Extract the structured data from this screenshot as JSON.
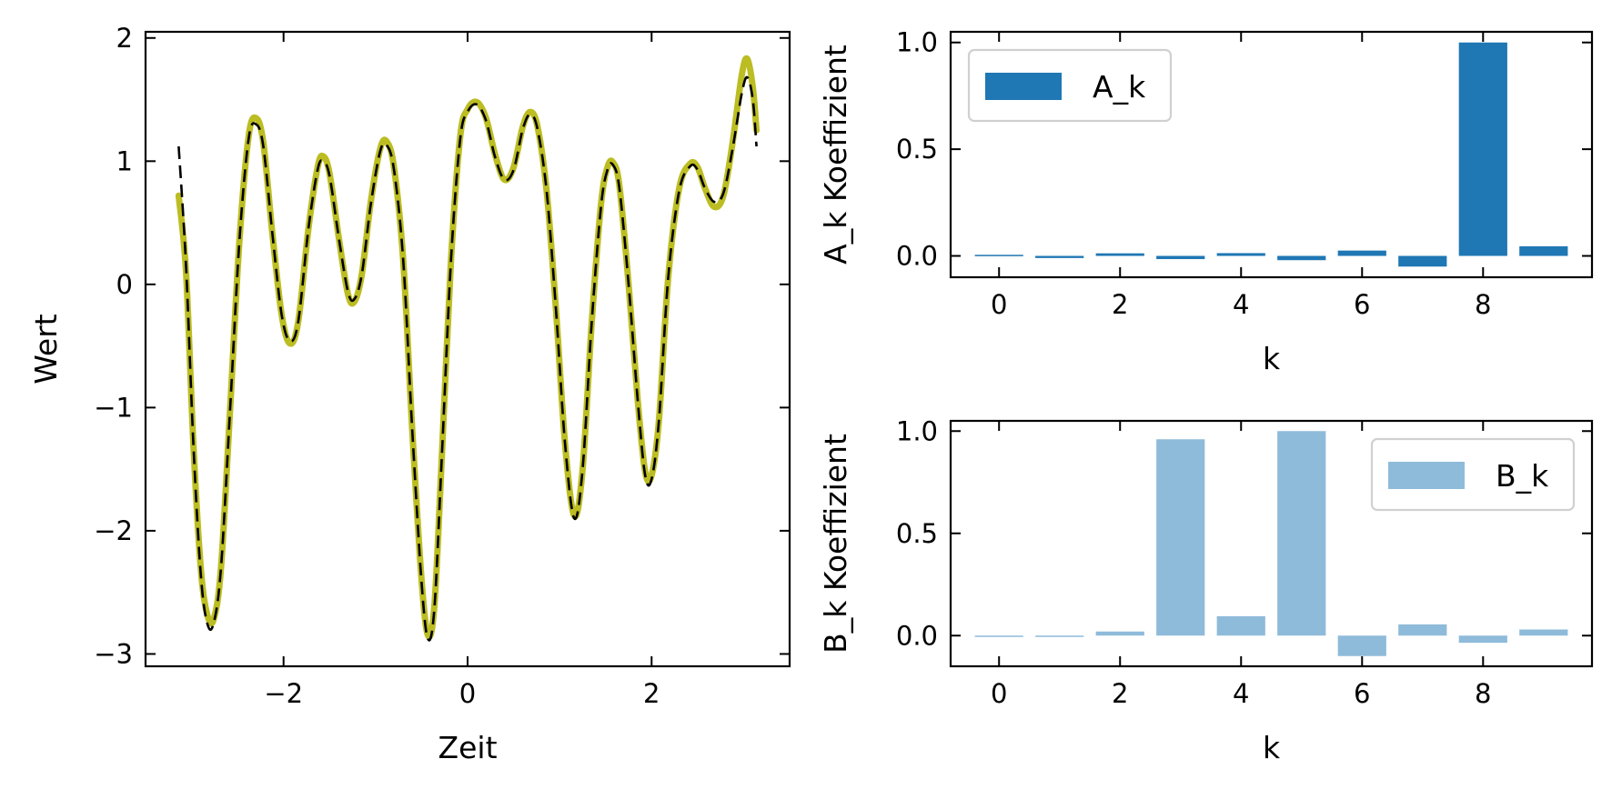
{
  "chart_data": [
    {
      "type": "line",
      "title": "",
      "xlabel": "Zeit",
      "ylabel": "Wert",
      "xlim": [
        -3.5,
        3.5
      ],
      "ylim": [
        -3.1,
        2.05
      ],
      "xticks": [
        -2,
        0,
        2
      ],
      "yticks": [
        -3,
        -2,
        -1,
        0,
        1,
        2
      ],
      "xtick_labels": [
        "−2",
        "0",
        "2"
      ],
      "ytick_labels": [
        "−3",
        "−2",
        "−1",
        "0",
        "1",
        "2"
      ],
      "grid": false,
      "series": [
        {
          "style": "solid",
          "color": "#bcbd22",
          "points": [
            [
              -3.14,
              0.72
            ],
            [
              -3.06,
              0.1
            ],
            [
              -2.98,
              -1.3
            ],
            [
              -2.9,
              -2.3
            ],
            [
              -2.83,
              -2.68
            ],
            [
              -2.76,
              -2.72
            ],
            [
              -2.68,
              -2.3
            ],
            [
              -2.58,
              -1.0
            ],
            [
              -2.48,
              0.35
            ],
            [
              -2.38,
              1.2
            ],
            [
              -2.3,
              1.35
            ],
            [
              -2.22,
              1.15
            ],
            [
              -2.12,
              0.4
            ],
            [
              -2.02,
              -0.25
            ],
            [
              -1.93,
              -0.48
            ],
            [
              -1.84,
              -0.3
            ],
            [
              -1.73,
              0.45
            ],
            [
              -1.63,
              0.95
            ],
            [
              -1.57,
              1.04
            ],
            [
              -1.5,
              0.9
            ],
            [
              -1.4,
              0.38
            ],
            [
              -1.3,
              -0.08
            ],
            [
              -1.23,
              -0.14
            ],
            [
              -1.15,
              0.08
            ],
            [
              -1.05,
              0.68
            ],
            [
              -0.95,
              1.1
            ],
            [
              -0.88,
              1.16
            ],
            [
              -0.8,
              0.95
            ],
            [
              -0.7,
              0.2
            ],
            [
              -0.6,
              -1.2
            ],
            [
              -0.5,
              -2.4
            ],
            [
              -0.43,
              -2.85
            ],
            [
              -0.36,
              -2.6
            ],
            [
              -0.28,
              -1.4
            ],
            [
              -0.18,
              0.2
            ],
            [
              -0.08,
              1.2
            ],
            [
              0.0,
              1.42
            ],
            [
              0.1,
              1.48
            ],
            [
              0.2,
              1.35
            ],
            [
              0.3,
              1.05
            ],
            [
              0.4,
              0.85
            ],
            [
              0.5,
              0.95
            ],
            [
              0.6,
              1.28
            ],
            [
              0.68,
              1.4
            ],
            [
              0.76,
              1.28
            ],
            [
              0.86,
              0.75
            ],
            [
              0.96,
              -0.2
            ],
            [
              1.06,
              -1.3
            ],
            [
              1.16,
              -1.88
            ],
            [
              1.25,
              -1.5
            ],
            [
              1.35,
              -0.3
            ],
            [
              1.45,
              0.65
            ],
            [
              1.52,
              0.95
            ],
            [
              1.58,
              0.99
            ],
            [
              1.65,
              0.8
            ],
            [
              1.75,
              0.0
            ],
            [
              1.85,
              -0.95
            ],
            [
              1.93,
              -1.52
            ],
            [
              2.0,
              -1.55
            ],
            [
              2.08,
              -1.1
            ],
            [
              2.18,
              0.05
            ],
            [
              2.3,
              0.78
            ],
            [
              2.42,
              0.98
            ],
            [
              2.5,
              0.95
            ],
            [
              2.58,
              0.78
            ],
            [
              2.68,
              0.63
            ],
            [
              2.78,
              0.72
            ],
            [
              2.88,
              1.15
            ],
            [
              2.98,
              1.7
            ],
            [
              3.04,
              1.83
            ],
            [
              3.1,
              1.6
            ],
            [
              3.14,
              1.25
            ]
          ]
        },
        {
          "style": "dashed",
          "color": "#000000",
          "points": [
            [
              -3.14,
              1.12
            ],
            [
              -3.06,
              0.15
            ],
            [
              -2.98,
              -1.3
            ],
            [
              -2.9,
              -2.35
            ],
            [
              -2.83,
              -2.75
            ],
            [
              -2.76,
              -2.75
            ],
            [
              -2.68,
              -2.3
            ],
            [
              -2.58,
              -1.0
            ],
            [
              -2.48,
              0.35
            ],
            [
              -2.38,
              1.18
            ],
            [
              -2.3,
              1.3
            ],
            [
              -2.22,
              1.12
            ],
            [
              -2.12,
              0.4
            ],
            [
              -2.02,
              -0.25
            ],
            [
              -1.93,
              -0.46
            ],
            [
              -1.84,
              -0.3
            ],
            [
              -1.73,
              0.45
            ],
            [
              -1.63,
              0.93
            ],
            [
              -1.57,
              1.0
            ],
            [
              -1.5,
              0.88
            ],
            [
              -1.4,
              0.38
            ],
            [
              -1.3,
              -0.06
            ],
            [
              -1.23,
              -0.12
            ],
            [
              -1.15,
              0.08
            ],
            [
              -1.05,
              0.66
            ],
            [
              -0.95,
              1.08
            ],
            [
              -0.88,
              1.13
            ],
            [
              -0.8,
              0.93
            ],
            [
              -0.7,
              0.2
            ],
            [
              -0.6,
              -1.2
            ],
            [
              -0.5,
              -2.42
            ],
            [
              -0.43,
              -2.88
            ],
            [
              -0.36,
              -2.62
            ],
            [
              -0.28,
              -1.4
            ],
            [
              -0.18,
              0.2
            ],
            [
              -0.08,
              1.18
            ],
            [
              0.0,
              1.4
            ],
            [
              0.1,
              1.46
            ],
            [
              0.2,
              1.33
            ],
            [
              0.3,
              1.03
            ],
            [
              0.4,
              0.85
            ],
            [
              0.5,
              0.93
            ],
            [
              0.6,
              1.26
            ],
            [
              0.68,
              1.38
            ],
            [
              0.76,
              1.26
            ],
            [
              0.86,
              0.75
            ],
            [
              0.96,
              -0.2
            ],
            [
              1.06,
              -1.3
            ],
            [
              1.16,
              -1.9
            ],
            [
              1.25,
              -1.5
            ],
            [
              1.35,
              -0.3
            ],
            [
              1.45,
              0.63
            ],
            [
              1.52,
              0.93
            ],
            [
              1.58,
              0.97
            ],
            [
              1.65,
              0.78
            ],
            [
              1.75,
              0.0
            ],
            [
              1.85,
              -0.95
            ],
            [
              1.93,
              -1.55
            ],
            [
              2.0,
              -1.58
            ],
            [
              2.08,
              -1.1
            ],
            [
              2.18,
              0.05
            ],
            [
              2.3,
              0.76
            ],
            [
              2.42,
              0.96
            ],
            [
              2.5,
              0.93
            ],
            [
              2.58,
              0.78
            ],
            [
              2.68,
              0.67
            ],
            [
              2.78,
              0.74
            ],
            [
              2.88,
              1.1
            ],
            [
              2.98,
              1.55
            ],
            [
              3.04,
              1.68
            ],
            [
              3.1,
              1.5
            ],
            [
              3.14,
              1.12
            ]
          ]
        }
      ]
    },
    {
      "type": "bar",
      "title": "",
      "xlabel": "k",
      "ylabel": "A_k Koeffizient",
      "xlim": [
        -0.8,
        9.8
      ],
      "ylim": [
        -0.1,
        1.05
      ],
      "xticks": [
        0,
        2,
        4,
        6,
        8
      ],
      "yticks": [
        0.0,
        0.5,
        1.0
      ],
      "xtick_labels": [
        "0",
        "2",
        "4",
        "6",
        "8"
      ],
      "ytick_labels": [
        "0.0",
        "0.5",
        "1.0"
      ],
      "categories": [
        0,
        1,
        2,
        3,
        4,
        5,
        6,
        7,
        8,
        9
      ],
      "series": [
        {
          "name": "A_k",
          "color": "#1f77b4",
          "values": [
            0.005,
            -0.01,
            0.012,
            -0.015,
            0.013,
            -0.02,
            0.025,
            -0.05,
            1.0,
            0.045
          ]
        }
      ],
      "legend": "upper-left",
      "grid": false
    },
    {
      "type": "bar",
      "title": "",
      "xlabel": "k",
      "ylabel": "B_k Koeffizient",
      "xlim": [
        -0.8,
        9.8
      ],
      "ylim": [
        -0.15,
        1.05
      ],
      "xticks": [
        0,
        2,
        4,
        6,
        8
      ],
      "yticks": [
        0.0,
        0.5,
        1.0
      ],
      "xtick_labels": [
        "0",
        "2",
        "4",
        "6",
        "8"
      ],
      "ytick_labels": [
        "0.0",
        "0.5",
        "1.0"
      ],
      "categories": [
        0,
        1,
        2,
        3,
        4,
        5,
        6,
        7,
        8,
        9
      ],
      "series": [
        {
          "name": "B_k",
          "color": "#8fbbda",
          "values": [
            0.0,
            -0.005,
            0.02,
            0.96,
            0.095,
            1.0,
            -0.1,
            0.055,
            -0.035,
            0.03
          ]
        }
      ],
      "legend": "upper-right",
      "grid": false
    }
  ]
}
